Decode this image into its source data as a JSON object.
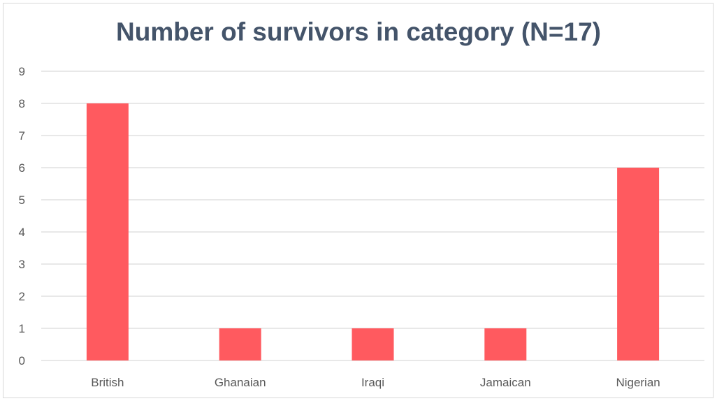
{
  "chart_data": {
    "type": "bar",
    "title": "Number of survivors in category (N=17)",
    "categories": [
      "British",
      "Ghanaian",
      "Iraqi",
      "Jamaican",
      "Nigerian"
    ],
    "values": [
      8,
      1,
      1,
      1,
      6
    ],
    "ylim": [
      0,
      9
    ],
    "yticks": [
      "0",
      "1",
      "2",
      "3",
      "4",
      "5",
      "6",
      "7",
      "8",
      "9"
    ],
    "xlabel": "",
    "ylabel": "",
    "grid": true,
    "legend": "none",
    "bar_color": "#ff5a5f",
    "gridline_color": "#d9d9d9",
    "title_color": "#44546a"
  }
}
